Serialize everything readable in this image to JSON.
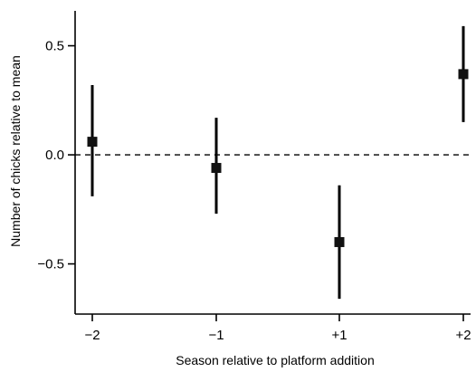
{
  "chart_data": {
    "type": "scatter",
    "title": "",
    "xlabel": "Season relative to platform addition",
    "ylabel": "Number of chicks relative to mean",
    "categories": [
      "−2",
      "−1",
      "+1",
      "+2"
    ],
    "series": [
      {
        "points": [
          {
            "x": "−2",
            "y": 0.06,
            "lower": -0.19,
            "upper": 0.32
          },
          {
            "x": "−1",
            "y": -0.06,
            "lower": -0.27,
            "upper": 0.17
          },
          {
            "x": "+1",
            "y": -0.4,
            "lower": -0.66,
            "upper": -0.14
          },
          {
            "x": "+2",
            "y": 0.37,
            "lower": 0.15,
            "upper": 0.59
          }
        ]
      }
    ],
    "reference_line": {
      "y": 0.0,
      "style": "dashed"
    },
    "yticks": [
      {
        "value": 0.5,
        "label": "0.5"
      },
      {
        "value": 0.0,
        "label": "0.0"
      },
      {
        "value": -0.5,
        "label": "−0.5"
      }
    ],
    "ylim": [
      -0.73,
      0.66
    ],
    "grid": false,
    "legend": "none",
    "marker": "square",
    "error_bars": true
  }
}
